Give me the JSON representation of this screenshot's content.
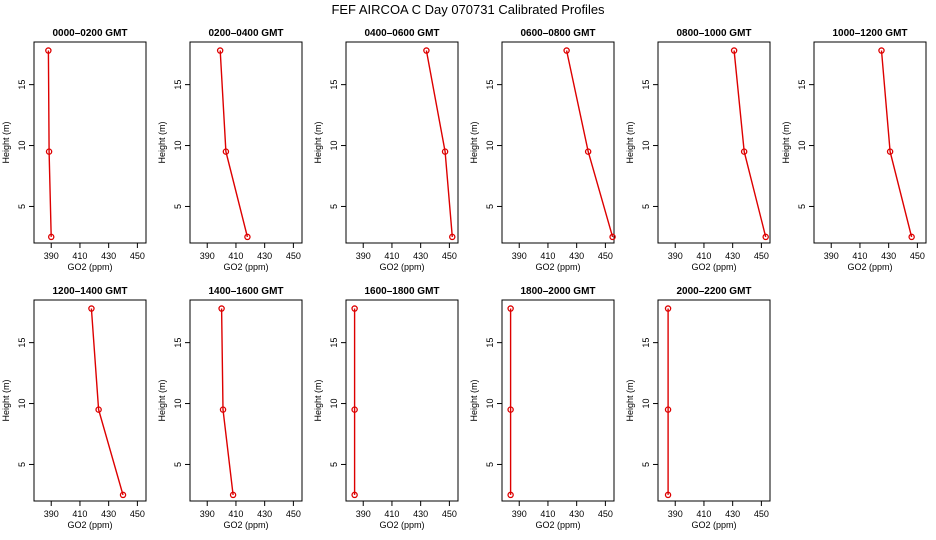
{
  "figure_title": "FEF AIRCOA C  Day 070731  Calibrated Profiles",
  "series_color": "#dd0000",
  "chart_data": [
    {
      "type": "line",
      "title": "0000–0200 GMT",
      "xlabel": "GO2 (ppm)",
      "ylabel": "Height (m)",
      "xlim": [
        378,
        456
      ],
      "ylim": [
        2,
        18.5
      ],
      "x_ticks": [
        390,
        410,
        430,
        450
      ],
      "y_ticks": [
        5,
        10,
        15
      ],
      "x": [
        388,
        388.5,
        390
      ],
      "y": [
        17.8,
        9.5,
        2.5
      ]
    },
    {
      "type": "line",
      "title": "0200–0400 GMT",
      "xlabel": "GO2 (ppm)",
      "ylabel": "Height (m)",
      "xlim": [
        378,
        456
      ],
      "ylim": [
        2,
        18.5
      ],
      "x_ticks": [
        390,
        410,
        430,
        450
      ],
      "y_ticks": [
        5,
        10,
        15
      ],
      "x": [
        399,
        403,
        418
      ],
      "y": [
        17.8,
        9.5,
        2.5
      ]
    },
    {
      "type": "line",
      "title": "0400–0600 GMT",
      "xlabel": "GO2 (ppm)",
      "ylabel": "Height (m)",
      "xlim": [
        378,
        456
      ],
      "ylim": [
        2,
        18.5
      ],
      "x_ticks": [
        390,
        410,
        430,
        450
      ],
      "y_ticks": [
        5,
        10,
        15
      ],
      "x": [
        434,
        447,
        452
      ],
      "y": [
        17.8,
        9.5,
        2.5
      ]
    },
    {
      "type": "line",
      "title": "0600–0800 GMT",
      "xlabel": "GO2 (ppm)",
      "ylabel": "Height (m)",
      "xlim": [
        378,
        456
      ],
      "ylim": [
        2,
        18.5
      ],
      "x_ticks": [
        390,
        410,
        430,
        450
      ],
      "y_ticks": [
        5,
        10,
        15
      ],
      "x": [
        423,
        438,
        455
      ],
      "y": [
        17.8,
        9.5,
        2.5
      ]
    },
    {
      "type": "line",
      "title": "0800–1000 GMT",
      "xlabel": "GO2 (ppm)",
      "ylabel": "Height (m)",
      "xlim": [
        378,
        456
      ],
      "ylim": [
        2,
        18.5
      ],
      "x_ticks": [
        390,
        410,
        430,
        450
      ],
      "y_ticks": [
        5,
        10,
        15
      ],
      "x": [
        431,
        438,
        453
      ],
      "y": [
        17.8,
        9.5,
        2.5
      ]
    },
    {
      "type": "line",
      "title": "1000–1200 GMT",
      "xlabel": "GO2 (ppm)",
      "ylabel": "Height (m)",
      "xlim": [
        378,
        456
      ],
      "ylim": [
        2,
        18.5
      ],
      "x_ticks": [
        390,
        410,
        430,
        450
      ],
      "y_ticks": [
        5,
        10,
        15
      ],
      "x": [
        425,
        431,
        446
      ],
      "y": [
        17.8,
        9.5,
        2.5
      ]
    },
    {
      "type": "line",
      "title": "1200–1400 GMT",
      "xlabel": "GO2 (ppm)",
      "ylabel": "Height (m)",
      "xlim": [
        378,
        456
      ],
      "ylim": [
        2,
        18.5
      ],
      "x_ticks": [
        390,
        410,
        430,
        450
      ],
      "y_ticks": [
        5,
        10,
        15
      ],
      "x": [
        418,
        423,
        440
      ],
      "y": [
        17.8,
        9.5,
        2.5
      ]
    },
    {
      "type": "line",
      "title": "1400–1600 GMT",
      "xlabel": "GO2 (ppm)",
      "ylabel": "Height (m)",
      "xlim": [
        378,
        456
      ],
      "ylim": [
        2,
        18.5
      ],
      "x_ticks": [
        390,
        410,
        430,
        450
      ],
      "y_ticks": [
        5,
        10,
        15
      ],
      "x": [
        400,
        401,
        408
      ],
      "y": [
        17.8,
        9.5,
        2.5
      ]
    },
    {
      "type": "line",
      "title": "1600–1800 GMT",
      "xlabel": "GO2 (ppm)",
      "ylabel": "Height (m)",
      "xlim": [
        378,
        456
      ],
      "ylim": [
        2,
        18.5
      ],
      "x_ticks": [
        390,
        410,
        430,
        450
      ],
      "y_ticks": [
        5,
        10,
        15
      ],
      "x": [
        384,
        384,
        384
      ],
      "y": [
        17.8,
        9.5,
        2.5
      ]
    },
    {
      "type": "line",
      "title": "1800–2000 GMT",
      "xlabel": "GO2 (ppm)",
      "ylabel": "Height (m)",
      "xlim": [
        378,
        456
      ],
      "ylim": [
        2,
        18.5
      ],
      "x_ticks": [
        390,
        410,
        430,
        450
      ],
      "y_ticks": [
        5,
        10,
        15
      ],
      "x": [
        384,
        384,
        384
      ],
      "y": [
        17.8,
        9.5,
        2.5
      ]
    },
    {
      "type": "line",
      "title": "2000–2200 GMT",
      "xlabel": "GO2 (ppm)",
      "ylabel": "Height (m)",
      "xlim": [
        378,
        456
      ],
      "ylim": [
        2,
        18.5
      ],
      "x_ticks": [
        390,
        410,
        430,
        450
      ],
      "y_ticks": [
        5,
        10,
        15
      ],
      "x": [
        385,
        385,
        385
      ],
      "y": [
        17.8,
        9.5,
        2.5
      ]
    }
  ]
}
